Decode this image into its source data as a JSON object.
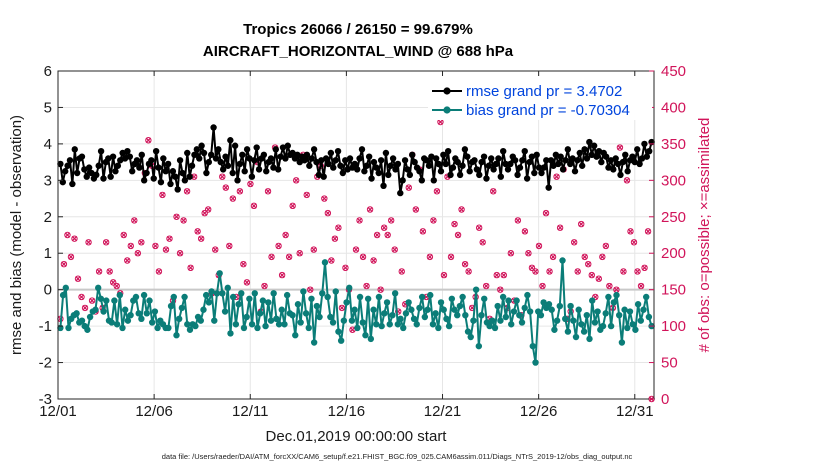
{
  "chart_data": {
    "type": "line",
    "title_line1": "Tropics 26066 / 26150 = 99.679%",
    "title_line2": "AIRCRAFT_HORIZONTAL_WIND @ 688 hPa",
    "xlabel": "Dec.01,2019 00:00:00 start",
    "ylabel_left": "rmse and bias (model - observation)",
    "ylabel_right": "# of obs: o=possible; ×=assimilated",
    "footer": "data file: /Users/raeder/DAI/ATM_forcXX/CAM6_setup/f.e21.FHIST_BGC.f09_025.CAM6assim.011/Diags_NTrS_2019-12/obs_diag_output.nc",
    "xlim": [
      1,
      32
    ],
    "ylim_left": [
      -3,
      6
    ],
    "ylim_right": [
      0,
      450
    ],
    "x_ticks": [
      1,
      6,
      11,
      16,
      21,
      26,
      31
    ],
    "x_tick_labels": [
      "12/01",
      "12/06",
      "12/11",
      "12/16",
      "12/21",
      "12/26",
      "12/31"
    ],
    "y_left_ticks": [
      -3,
      -2,
      -1,
      0,
      1,
      2,
      3,
      4,
      5,
      6
    ],
    "y_right_ticks": [
      0,
      50,
      100,
      150,
      200,
      250,
      300,
      350,
      400,
      450
    ],
    "legend": [
      {
        "name": "rmse grand pr = 3.4702",
        "color": "#000000"
      },
      {
        "name": "bias grand pr = -0.70304",
        "color": "#0b7d78"
      }
    ],
    "colors": {
      "rmse": "#000000",
      "bias": "#0b7d78",
      "obs": "#d1145a",
      "grid": "#e6e6e6",
      "zero": "#c8c8c8"
    },
    "rmse": [
      3.45,
      2.95,
      3.25,
      3.4,
      3.55,
      2.9,
      3.85,
      3.2,
      3.6,
      3.65,
      3.3,
      3.1,
      3.35,
      3.2,
      3.05,
      3.15,
      3.4,
      3.8,
      3.05,
      3.5,
      3.6,
      3.1,
      3.65,
      3.25,
      3.4,
      3.55,
      3.75,
      3.6,
      3.8,
      3.65,
      3.25,
      3.45,
      3.55,
      3.35,
      3.7,
      3.0,
      3.2,
      3.45,
      3.55,
      3.05,
      3.8,
      3.35,
      2.95,
      3.6,
      3.25,
      3.45,
      2.9,
      3.25,
      3.1,
      2.75,
      3.55,
      3.2,
      3.0,
      3.75,
      3.1,
      3.4,
      3.7,
      3.85,
      3.6,
      3.95,
      3.75,
      3.2,
      3.5,
      3.7,
      4.45,
      3.6,
      3.85,
      3.5,
      3.3,
      3.65,
      3.4,
      4.1,
      3.2,
      3.95,
      3.0,
      3.45,
      3.7,
      3.25,
      3.85,
      3.6,
      3.1,
      3.55,
      3.9,
      3.3,
      3.6,
      3.7,
      3.25,
      3.5,
      3.6,
      3.35,
      3.85,
      3.3,
      3.65,
      3.9,
      3.6,
      3.95,
      3.7,
      3.75,
      3.6,
      3.7,
      3.5,
      3.65,
      3.55,
      3.7,
      3.4,
      3.6,
      3.85,
      3.5,
      3.15,
      3.55,
      3.1,
      3.6,
      3.45,
      3.75,
      3.35,
      3.55,
      3.8,
      3.4,
      3.2,
      3.55,
      3.3,
      3.6,
      3.35,
      3.45,
      3.3,
      3.6,
      3.85,
      3.25,
      3.4,
      3.65,
      3.05,
      3.5,
      3.35,
      3.2,
      3.55,
      2.85,
      3.75,
      3.15,
      3.4,
      3.6,
      3.3,
      3.45,
      2.65,
      3.0,
      3.55,
      3.3,
      3.15,
      3.7,
      3.5,
      3.35,
      3.25,
      3.0,
      3.6,
      3.55,
      3.4,
      3.65,
      3.0,
      3.6,
      3.45,
      3.25,
      3.7,
      3.45,
      3.8,
      3.15,
      3.35,
      3.6,
      3.5,
      3.15,
      3.4,
      3.85,
      3.65,
      3.25,
      3.5,
      3.55,
      3.3,
      3.15,
      3.5,
      3.65,
      3.05,
      3.4,
      3.6,
      3.3,
      3.45,
      3.6,
      3.1,
      3.8,
      3.45,
      3.3,
      3.45,
      3.65,
      3.55,
      3.15,
      3.35,
      3.55,
      3.8,
      3.05,
      3.5,
      3.65,
      3.2,
      3.7,
      3.35,
      3.2,
      3.35,
      3.55,
      2.8,
      3.55,
      3.4,
      3.7,
      3.45,
      3.65,
      3.3,
      3.55,
      3.85,
      3.45,
      3.6,
      3.25,
      3.55,
      3.75,
      3.4,
      3.85,
      3.6,
      4.05,
      3.7,
      3.95,
      3.65,
      3.8,
      3.5,
      3.75,
      3.65,
      3.35,
      3.55,
      3.3,
      3.6,
      3.45,
      3.15,
      3.5,
      3.7,
      3.25,
      3.55,
      3.65,
      3.5,
      3.85,
      3.45,
      3.6,
      4.0,
      3.65,
      3.8,
      4.05
    ],
    "bias": [
      -1.05,
      -0.15,
      0.05,
      -1.05,
      -0.8,
      -0.7,
      -0.65,
      -0.9,
      -0.85,
      -1.0,
      -1.1,
      -0.75,
      -0.6,
      -0.55,
      0.05,
      -0.25,
      -0.6,
      -0.3,
      -0.85,
      -0.9,
      -0.3,
      -0.95,
      -0.15,
      -1.05,
      -0.55,
      -0.85,
      -0.7,
      -0.3,
      -0.2,
      -0.65,
      -0.8,
      -0.15,
      -0.65,
      -0.3,
      -0.9,
      -0.6,
      -1.05,
      -0.85,
      -0.95,
      -1.05,
      -1.05,
      -0.45,
      -0.2,
      -1.25,
      -0.8,
      -0.5,
      -0.2,
      -0.95,
      -1.1,
      -0.95,
      -1.0,
      -0.75,
      -0.85,
      -0.55,
      -0.15,
      -0.35,
      -0.05,
      -0.85,
      -0.1,
      0.45,
      -0.1,
      -0.6,
      0.05,
      -1.2,
      -0.2,
      -0.95,
      -0.4,
      -0.1,
      -1.05,
      -0.75,
      -0.25,
      -0.95,
      -0.1,
      -1.05,
      -0.65,
      -0.3,
      -1.0,
      -0.35,
      -0.85,
      -0.1,
      -0.8,
      -0.95,
      -0.55,
      -0.95,
      -0.15,
      -0.65,
      -0.7,
      -1.25,
      -0.4,
      -0.9,
      -0.05,
      -0.65,
      -1.05,
      -0.25,
      -1.45,
      -0.45,
      -0.75,
      -0.1,
      0.75,
      -0.2,
      -0.75,
      -0.9,
      -0.05,
      -1.15,
      -1.4,
      -0.85,
      -0.35,
      0.05,
      -0.85,
      -0.55,
      -1.05,
      -0.2,
      -0.9,
      -1.25,
      -0.25,
      -1.35,
      -0.55,
      -0.95,
      -0.2,
      -1.0,
      -0.65,
      -0.35,
      -0.95,
      -0.7,
      -0.1,
      -0.95,
      -0.8,
      -1.05,
      -0.65,
      -0.35,
      -0.55,
      -0.8,
      -0.95,
      -0.5,
      -0.2,
      -0.75,
      -0.55,
      -0.15,
      -0.95,
      -0.65,
      -1.05,
      -0.35,
      -0.55,
      -0.8,
      -1.0,
      -0.25,
      -0.55,
      -0.7,
      -0.45,
      -0.2,
      -0.7,
      -1.15,
      -1.3,
      -0.85,
      0.0,
      -1.55,
      -0.7,
      -0.25,
      -0.9,
      -1.0,
      -0.85,
      -1.05,
      -0.45,
      -0.85,
      -0.2,
      -0.75,
      -0.3,
      -0.95,
      -0.6,
      -0.3,
      -0.7,
      -0.9,
      -0.5,
      -0.15,
      -0.6,
      -1.55,
      -2.0,
      -0.6,
      -0.7,
      -0.35,
      -0.5,
      -0.4,
      -0.55,
      -1.1,
      -0.85,
      -0.45,
      0.8,
      -0.8,
      -1.15,
      -0.45,
      -0.85,
      -1.3,
      -0.55,
      -0.95,
      -1.15,
      -0.7,
      -1.35,
      -0.3,
      -0.9,
      -0.6,
      -1.1,
      -1.0,
      -0.65,
      -0.2,
      -1.0,
      -0.35,
      -0.15,
      -0.7,
      -1.45,
      -0.55,
      -1.05,
      -0.6,
      -0.95,
      -1.1,
      -0.4,
      -0.85,
      -0.55,
      -0.2,
      -0.75,
      -1.0
    ],
    "obs_possible": [
      110,
      185,
      225,
      195,
      220,
      165,
      140,
      125,
      215,
      135,
      120,
      175,
      125,
      215,
      175,
      160,
      155,
      145,
      225,
      190,
      210,
      245,
      200,
      215,
      310,
      355,
      320,
      210,
      175,
      280,
      205,
      220,
      135,
      250,
      200,
      245,
      285,
      180,
      305,
      230,
      220,
      255,
      260,
      145,
      205,
      170,
      305,
      290,
      210,
      275,
      140,
      285,
      185,
      160,
      295,
      265,
      325,
      120,
      155,
      285,
      195,
      345,
      210,
      170,
      225,
      195,
      265,
      300,
      200,
      335,
      280,
      150,
      205,
      305,
      320,
      275,
      255,
      190,
      220,
      235,
      125,
      180,
      150,
      95,
      205,
      245,
      195,
      155,
      260,
      190,
      225,
      150,
      235,
      225,
      245,
      205,
      120,
      175,
      130,
      290,
      335,
      260,
      315,
      230,
      140,
      195,
      245,
      285,
      380,
      170,
      305,
      195,
      240,
      225,
      260,
      185,
      175,
      125,
      140,
      235,
      215,
      155,
      110,
      285,
      170,
      150,
      170,
      125,
      200,
      135,
      245,
      115,
      230,
      200,
      180,
      175,
      210,
      155,
      255,
      175,
      195,
      305,
      235,
      315,
      110,
      120,
      215,
      175,
      240,
      195,
      185,
      170,
      140,
      165,
      195,
      210,
      155,
      125,
      150,
      345,
      175,
      300,
      230,
      215,
      175,
      155,
      180,
      230,
      0
    ],
    "obs_assimilated": [
      110,
      185,
      225,
      195,
      220,
      165,
      140,
      125,
      215,
      135,
      120,
      175,
      125,
      215,
      175,
      160,
      155,
      145,
      225,
      190,
      210,
      245,
      200,
      215,
      310,
      355,
      320,
      210,
      175,
      280,
      205,
      220,
      135,
      250,
      200,
      245,
      285,
      180,
      305,
      230,
      220,
      255,
      260,
      145,
      205,
      170,
      305,
      290,
      210,
      275,
      140,
      285,
      185,
      160,
      295,
      265,
      325,
      120,
      155,
      285,
      195,
      345,
      210,
      170,
      225,
      195,
      265,
      300,
      200,
      335,
      280,
      150,
      205,
      305,
      320,
      275,
      255,
      190,
      220,
      235,
      125,
      180,
      150,
      95,
      205,
      245,
      195,
      155,
      260,
      190,
      225,
      150,
      235,
      225,
      245,
      205,
      120,
      175,
      130,
      290,
      335,
      260,
      315,
      230,
      140,
      195,
      245,
      285,
      380,
      170,
      305,
      195,
      240,
      225,
      260,
      185,
      175,
      125,
      140,
      235,
      215,
      155,
      110,
      285,
      170,
      150,
      170,
      125,
      200,
      135,
      245,
      115,
      230,
      200,
      180,
      175,
      210,
      155,
      255,
      175,
      195,
      305,
      235,
      315,
      110,
      120,
      215,
      175,
      240,
      195,
      185,
      170,
      140,
      165,
      195,
      210,
      155,
      125,
      150,
      345,
      175,
      300,
      230,
      215,
      175,
      155,
      180,
      230,
      0
    ]
  }
}
